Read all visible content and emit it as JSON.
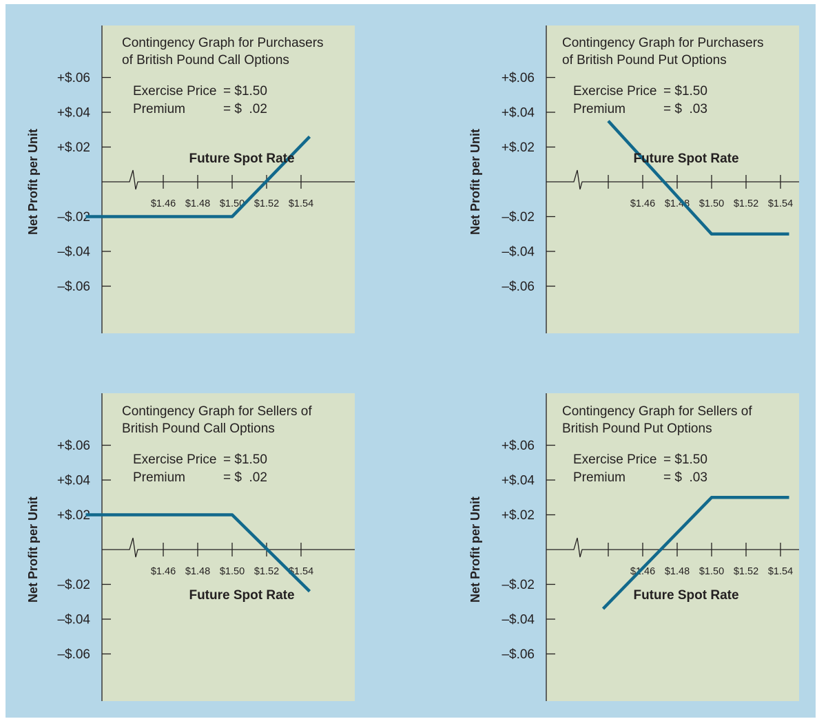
{
  "colors": {
    "background": "#b5d7e8",
    "panel": "#d8e1c8",
    "line": "#12698c",
    "axis": "#231f20"
  },
  "chart_data": [
    {
      "type": "line",
      "title": [
        "Contingency Graph for Purchasers",
        "of British Pound Call Options"
      ],
      "info": [
        {
          "label": "Exercise Price",
          "value": "= $1.50"
        },
        {
          "label": "Premium",
          "value": "= $  .02"
        }
      ],
      "xlabel": "Future Spot Rate",
      "ylabel": "Net Profit per Unit",
      "xticks": [
        1.46,
        1.48,
        1.5,
        1.52,
        1.54
      ],
      "xtick_labels": [
        "$1.46",
        "$1.48",
        "$1.50",
        "$1.52",
        "$1.54"
      ],
      "yticks": [
        0.06,
        0.04,
        0.02,
        -0.02,
        -0.04,
        -0.06
      ],
      "ytick_labels": [
        "+$.06",
        "+$.04",
        "+$.02",
        "–$.02",
        "–$.04",
        "–$.06"
      ],
      "xlabel_position": "above-axis",
      "series": [
        {
          "x": [
            1.415,
            1.5,
            1.545
          ],
          "y": [
            -0.02,
            -0.02,
            0.026
          ]
        }
      ]
    },
    {
      "type": "line",
      "title": [
        "Contingency Graph for Purchasers",
        "of British Pound Put Options"
      ],
      "info": [
        {
          "label": "Exercise Price",
          "value": "= $1.50"
        },
        {
          "label": "Premium",
          "value": "= $  .03"
        }
      ],
      "xlabel": "Future Spot Rate",
      "ylabel": "Net Profit per Unit",
      "xticks": [
        1.44,
        1.46,
        1.48,
        1.5,
        1.52,
        1.54
      ],
      "xtick_labels": [
        "",
        "$1.46",
        "$1.48",
        "$1.50",
        "$1.52",
        "$1.54"
      ],
      "yticks": [
        0.06,
        0.04,
        0.02,
        -0.02,
        -0.04,
        -0.06
      ],
      "ytick_labels": [
        "+$.06",
        "+$.04",
        "+$.02",
        "–$.02",
        "–$.04",
        "–$.06"
      ],
      "xlabel_position": "above-axis",
      "series": [
        {
          "x": [
            1.44,
            1.5,
            1.545
          ],
          "y": [
            0.035,
            -0.03,
            -0.03
          ]
        }
      ]
    },
    {
      "type": "line",
      "title": [
        "Contingency Graph for Sellers of",
        "British Pound Call Options"
      ],
      "info": [
        {
          "label": "Exercise Price",
          "value": "= $1.50"
        },
        {
          "label": "Premium",
          "value": "= $  .02"
        }
      ],
      "xlabel": "Future Spot Rate",
      "ylabel": "Net Profit per Unit",
      "xticks": [
        1.46,
        1.48,
        1.5,
        1.52,
        1.54
      ],
      "xtick_labels": [
        "$1.46",
        "$1.48",
        "$1.50",
        "$1.52",
        "$1.54"
      ],
      "yticks": [
        0.06,
        0.04,
        0.02,
        -0.02,
        -0.04,
        -0.06
      ],
      "ytick_labels": [
        "+$.06",
        "+$.04",
        "+$.02",
        "–$.02",
        "–$.04",
        "–$.06"
      ],
      "xlabel_position": "below-axis",
      "series": [
        {
          "x": [
            1.415,
            1.5,
            1.545
          ],
          "y": [
            0.02,
            0.02,
            -0.024
          ]
        }
      ]
    },
    {
      "type": "line",
      "title": [
        "Contingency Graph for Sellers of",
        "British Pound Put Options"
      ],
      "info": [
        {
          "label": "Exercise Price",
          "value": "= $1.50"
        },
        {
          "label": "Premium",
          "value": "= $  .03"
        }
      ],
      "xlabel": "Future Spot Rate",
      "ylabel": "Net Profit per Unit",
      "xticks": [
        1.44,
        1.46,
        1.48,
        1.5,
        1.52,
        1.54
      ],
      "xtick_labels": [
        "",
        "$1.46",
        "$1.48",
        "$1.50",
        "$1.52",
        "$1.54"
      ],
      "yticks": [
        0.06,
        0.04,
        0.02,
        -0.02,
        -0.04,
        -0.06
      ],
      "ytick_labels": [
        "+$.06",
        "+$.04",
        "+$.02",
        "–$.02",
        "–$.04",
        "–$.06"
      ],
      "xlabel_position": "below-axis",
      "series": [
        {
          "x": [
            1.437,
            1.5,
            1.545
          ],
          "y": [
            -0.034,
            0.03,
            0.03
          ]
        }
      ]
    }
  ]
}
